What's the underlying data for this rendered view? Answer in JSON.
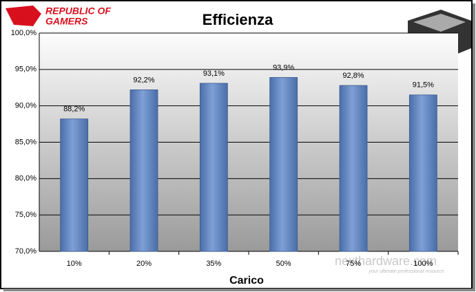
{
  "chart_data": {
    "type": "bar",
    "title": "Efficienza",
    "x_label": "Carico",
    "logo": [
      "REPUBLIC OF",
      "GAMERS"
    ],
    "watermark": "nexthardware.com",
    "watermark_tagline": "your ultimate professional resource",
    "categories": [
      "10%",
      "20%",
      "35%",
      "50%",
      "75%",
      "100%"
    ],
    "values": [
      88.2,
      92.2,
      93.1,
      93.9,
      92.8,
      91.5
    ],
    "value_labels": [
      "88,2%",
      "92,2%",
      "93,1%",
      "93,9%",
      "92,8%",
      "91,5%"
    ],
    "color": "#5b7fc0",
    "ylim": [
      70,
      100
    ],
    "yticks": [
      {
        "value": 70,
        "label": "70,0%"
      },
      {
        "value": 75,
        "label": "75,0%"
      },
      {
        "value": 80,
        "label": "80,0%"
      },
      {
        "value": 85,
        "label": "85,0%"
      },
      {
        "value": 90,
        "label": "90,0%"
      },
      {
        "value": 95,
        "label": "95,0%"
      },
      {
        "value": 100,
        "label": "100,0%"
      }
    ],
    "grid": true
  }
}
